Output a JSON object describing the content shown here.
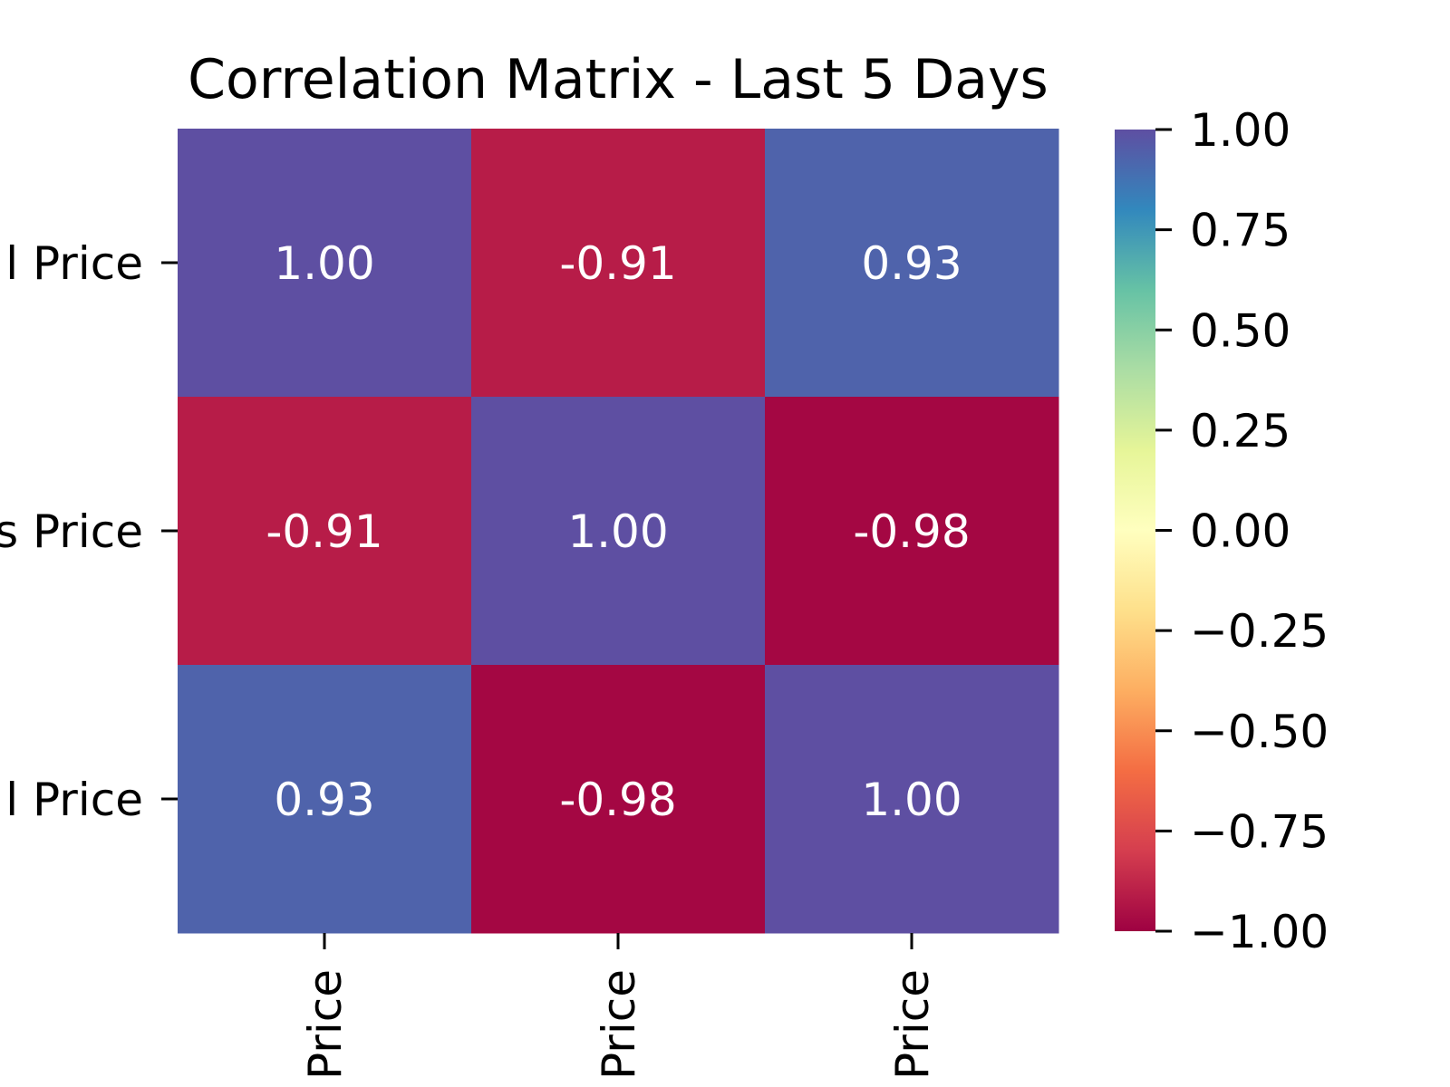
{
  "chart_data": {
    "type": "heatmap",
    "title": "Correlation Matrix - Last 5 Days",
    "row_labels": [
      "l Price",
      "s Price",
      "l Price"
    ],
    "col_labels": [
      "Price",
      "Price",
      "Price"
    ],
    "values": [
      [
        1.0,
        -0.91,
        0.93
      ],
      [
        -0.91,
        1.0,
        -0.98
      ],
      [
        0.93,
        -0.98,
        1.0
      ]
    ],
    "value_labels": [
      [
        "1.00",
        "-0.91",
        "0.93"
      ],
      [
        "-0.91",
        "1.00",
        "-0.98"
      ],
      [
        "0.93",
        "-0.98",
        "1.00"
      ]
    ],
    "colorbar": {
      "range": [
        -1.0,
        1.0
      ],
      "ticks": [
        1.0,
        0.75,
        0.5,
        0.25,
        0.0,
        -0.25,
        -0.5,
        -0.75,
        -1.0
      ],
      "tick_labels": [
        "1.00",
        "0.75",
        "0.50",
        "0.25",
        "0.00",
        "−0.25",
        "−0.50",
        "−0.75",
        "−1.00"
      ],
      "colormap": "Spectral",
      "stops": [
        "#9e0142",
        "#d53e4f",
        "#f46d43",
        "#fdae61",
        "#fee08b",
        "#ffffbf",
        "#e6f598",
        "#abdda4",
        "#66c2a5",
        "#3288bd",
        "#5e4fa2"
      ]
    },
    "grid": false
  }
}
